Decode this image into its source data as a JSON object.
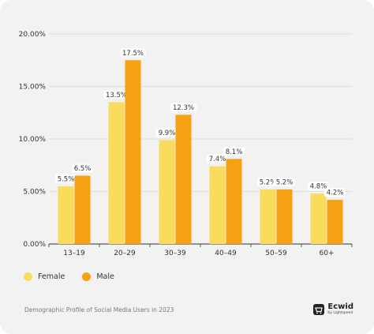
{
  "chart_data": {
    "type": "bar",
    "categories": [
      "13–19",
      "20–29",
      "30–39",
      "40–49",
      "50–59",
      "60+"
    ],
    "series": [
      {
        "name": "Female",
        "values": [
          5.5,
          13.5,
          9.9,
          7.4,
          5.2,
          4.8
        ],
        "labels": [
          "5.5%",
          "13.5%",
          "9.9%",
          "7.4%",
          "5.2%",
          "4.8%"
        ],
        "color": "#f9dc5c"
      },
      {
        "name": "Male",
        "values": [
          6.5,
          17.5,
          12.3,
          8.1,
          5.2,
          4.2
        ],
        "labels": [
          "6.5%",
          "17.5%",
          "12.3%",
          "8.1%",
          "5.2%",
          "4.2%"
        ],
        "color": "#f7a011"
      }
    ],
    "yticks": [
      "0.00%",
      "5.00%",
      "10.00%",
      "15.00%",
      "20.00%"
    ],
    "ylim": [
      0,
      20
    ],
    "grid": true,
    "legend_position": "bottom-left"
  },
  "caption": "Demographic Profile of Social Media Users in 2023",
  "brand": {
    "name": "Ecwid",
    "sub": "by Lightspeed"
  }
}
